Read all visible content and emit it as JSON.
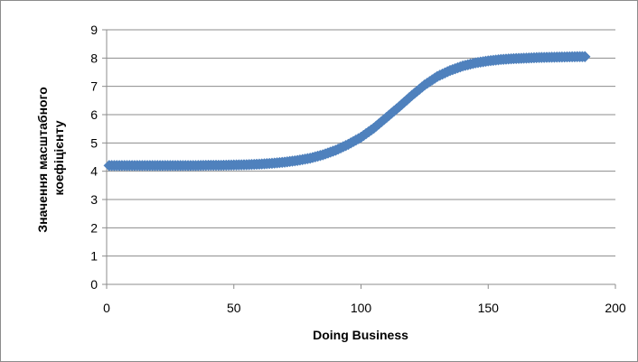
{
  "chart_data": {
    "type": "scatter",
    "title": "",
    "xlabel": "Doing Business",
    "ylabel_lines": [
      "Значення масштабного",
      "коефіцієнту"
    ],
    "xlim": [
      0,
      200
    ],
    "ylim": [
      0,
      9
    ],
    "xticks": [
      0,
      50,
      100,
      150,
      200
    ],
    "yticks": [
      0,
      1,
      2,
      3,
      4,
      5,
      6,
      7,
      8,
      9
    ],
    "grid": "horizontal",
    "legend": "none",
    "marker": "diamond",
    "series": [
      {
        "color": "#4f81bd",
        "points": [
          [
            1,
            4.2
          ],
          [
            5,
            4.2
          ],
          [
            10,
            4.2
          ],
          [
            15,
            4.2
          ],
          [
            20,
            4.2
          ],
          [
            25,
            4.2
          ],
          [
            30,
            4.2
          ],
          [
            35,
            4.2
          ],
          [
            40,
            4.21
          ],
          [
            45,
            4.21
          ],
          [
            50,
            4.22
          ],
          [
            55,
            4.23
          ],
          [
            60,
            4.25
          ],
          [
            65,
            4.28
          ],
          [
            70,
            4.32
          ],
          [
            75,
            4.38
          ],
          [
            80,
            4.46
          ],
          [
            85,
            4.58
          ],
          [
            90,
            4.74
          ],
          [
            95,
            4.95
          ],
          [
            100,
            5.2
          ],
          [
            105,
            5.52
          ],
          [
            110,
            5.9
          ],
          [
            115,
            6.28
          ],
          [
            120,
            6.68
          ],
          [
            125,
            7.05
          ],
          [
            130,
            7.35
          ],
          [
            135,
            7.56
          ],
          [
            140,
            7.72
          ],
          [
            145,
            7.83
          ],
          [
            150,
            7.9
          ],
          [
            155,
            7.95
          ],
          [
            160,
            7.98
          ],
          [
            165,
            8.0
          ],
          [
            170,
            8.02
          ],
          [
            175,
            8.03
          ],
          [
            180,
            8.04
          ],
          [
            185,
            8.05
          ],
          [
            188,
            8.05
          ]
        ]
      }
    ]
  }
}
